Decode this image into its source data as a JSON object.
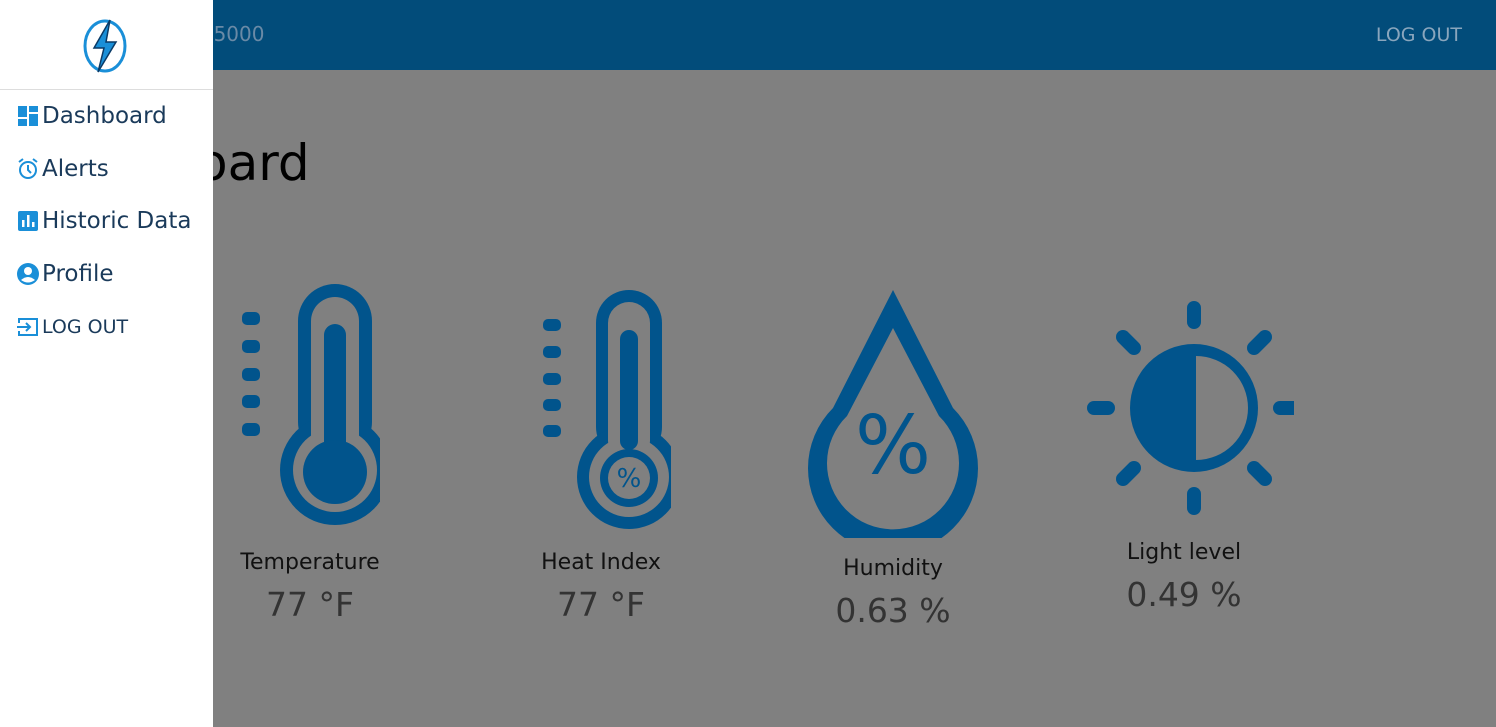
{
  "header": {
    "title": "r 5000",
    "logout": "LOG OUT"
  },
  "page": {
    "heading": "oard"
  },
  "cards": [
    {
      "label": "Temperature",
      "value": "77 °F"
    },
    {
      "label": "Heat Index",
      "value": "77 °F"
    },
    {
      "label": "Humidity",
      "value": "0.63 %"
    },
    {
      "label": "Light level",
      "value": "0.49 %"
    }
  ],
  "drawer": {
    "items": [
      "Dashboard",
      "Alerts",
      "Historic Data",
      "Profile",
      "LOG OUT"
    ]
  }
}
